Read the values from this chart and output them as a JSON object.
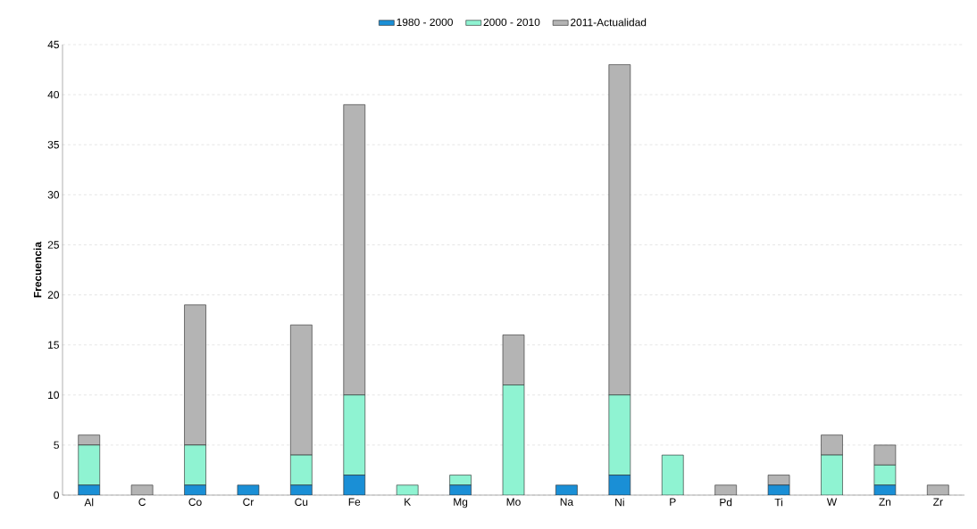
{
  "chart_data": {
    "type": "bar",
    "stacked": true,
    "ylabel": "Frecuencia",
    "categories": [
      "Al",
      "C",
      "Co",
      "Cr",
      "Cu",
      "Fe",
      "K",
      "Mg",
      "Mo",
      "Na",
      "Ni",
      "P",
      "Pd",
      "Ti",
      "W",
      "Zn",
      "Zr"
    ],
    "series": [
      {
        "name": "1980 - 2000",
        "color": "#1a8fd6",
        "values": [
          1,
          0,
          1,
          1,
          1,
          2,
          0,
          1,
          0,
          1,
          2,
          0,
          0,
          1,
          0,
          1,
          0
        ]
      },
      {
        "name": "2000 - 2010",
        "color": "#8ff3d2",
        "values": [
          4,
          0,
          4,
          0,
          3,
          8,
          1,
          1,
          11,
          0,
          8,
          4,
          0,
          0,
          4,
          2,
          0
        ]
      },
      {
        "name": "2011-Actualidad",
        "color": "#b4b4b4",
        "values": [
          1,
          1,
          14,
          0,
          13,
          29,
          0,
          0,
          5,
          0,
          33,
          0,
          1,
          1,
          2,
          2,
          1
        ]
      }
    ],
    "ylim": [
      0,
      45
    ],
    "yticks": [
      0,
      5,
      10,
      15,
      20,
      25,
      30,
      35,
      40,
      45
    ],
    "grid": "y",
    "legend": "top"
  }
}
